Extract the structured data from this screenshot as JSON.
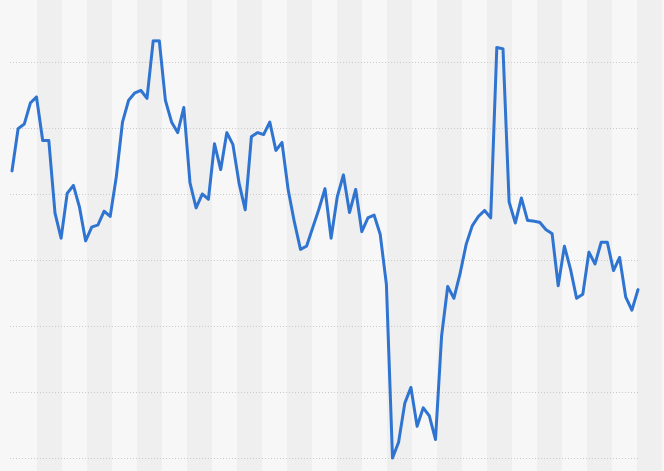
{
  "chart_data": {
    "type": "line",
    "title": "",
    "xlabel": "",
    "ylabel": "",
    "grid": true,
    "legend": "none",
    "ylim": [
      0,
      6
    ],
    "colors": {
      "line": "#2f74d0",
      "grid": "#c9c9c9",
      "band": "#efefef",
      "background": "#f7f7f7"
    },
    "series": [
      {
        "values": [
          4.35,
          4.99,
          5.06,
          5.38,
          5.47,
          4.81,
          4.81,
          3.71,
          3.33,
          4.01,
          4.13,
          3.8,
          3.29,
          3.5,
          3.53,
          3.74,
          3.66,
          4.26,
          5.09,
          5.42,
          5.53,
          5.57,
          5.45,
          6.32,
          6.32,
          5.42,
          5.09,
          4.93,
          5.31,
          4.17,
          3.79,
          4.0,
          3.92,
          4.76,
          4.37,
          4.93,
          4.75,
          4.16,
          3.76,
          4.87,
          4.93,
          4.9,
          5.09,
          4.66,
          4.78,
          4.06,
          3.58,
          3.16,
          3.21,
          3.49,
          3.77,
          4.08,
          3.33,
          3.96,
          4.29,
          3.72,
          4.07,
          3.43,
          3.64,
          3.68,
          3.39,
          2.63,
          0.0,
          0.24,
          0.83,
          1.07,
          0.48,
          0.76,
          0.64,
          0.28,
          1.85,
          2.6,
          2.42,
          2.79,
          3.24,
          3.52,
          3.66,
          3.75,
          3.64,
          6.22,
          6.2,
          3.88,
          3.56,
          3.94,
          3.6,
          3.59,
          3.57,
          3.46,
          3.4,
          2.61,
          3.21,
          2.86,
          2.42,
          2.48,
          3.12,
          2.94,
          3.27,
          3.27,
          2.84,
          3.04,
          2.44,
          2.24,
          2.55
        ]
      }
    ]
  }
}
